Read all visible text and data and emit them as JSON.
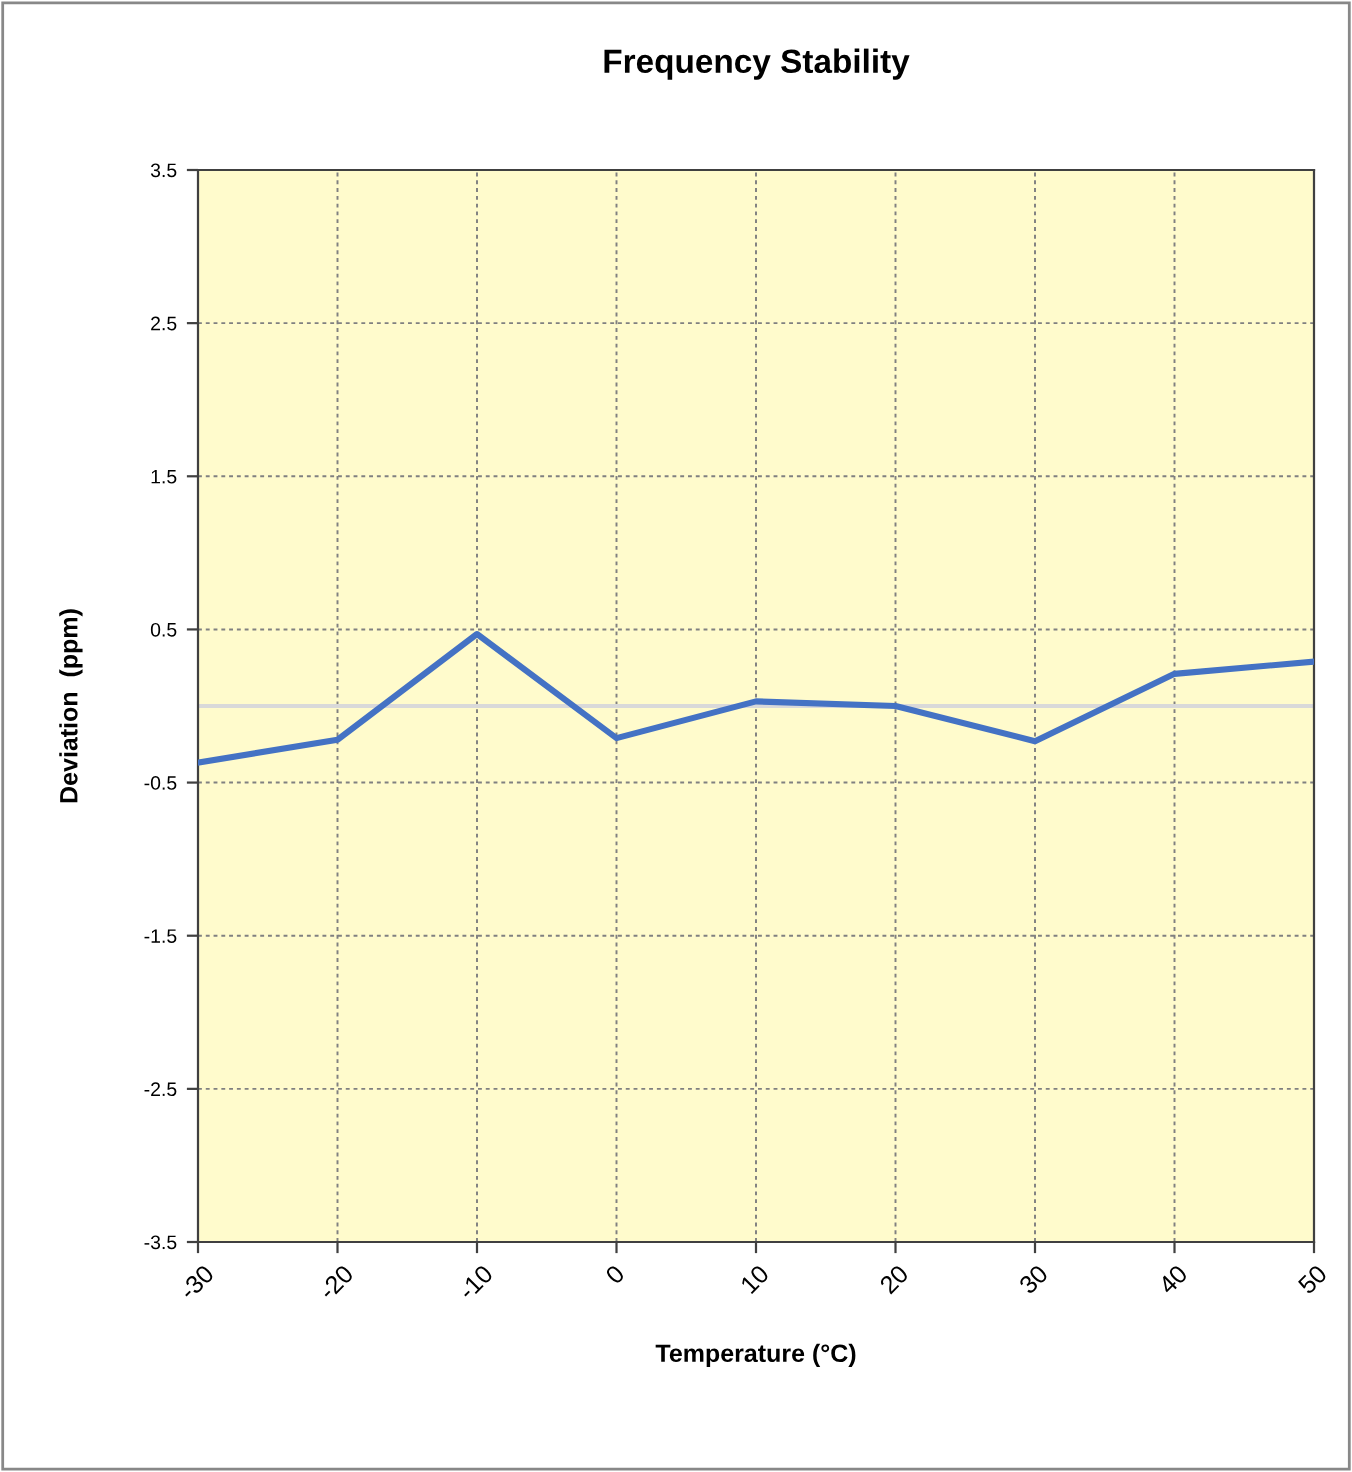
{
  "chart_data": {
    "type": "line",
    "title": "Frequency Stability",
    "xlabel": "Temperature (°C)",
    "ylabel": "Deviation  (ppm)",
    "x": [
      -30,
      -20,
      -10,
      0,
      10,
      20,
      30,
      40,
      50
    ],
    "series": [
      {
        "color": "#4472c4",
        "values": [
          -0.37,
          -0.22,
          0.47,
          -0.21,
          0.03,
          0.0,
          -0.23,
          0.21,
          0.29
        ]
      }
    ],
    "xlim": [
      -30,
      50
    ],
    "xticks": [
      -30,
      -20,
      -10,
      0,
      10,
      20,
      30,
      40,
      50
    ],
    "ylim": [
      -3.5,
      3.5
    ],
    "yticks": [
      -3.5,
      -2.5,
      -1.5,
      -0.5,
      0.5,
      1.5,
      2.5,
      3.5
    ],
    "ref_lines": [
      {
        "axis": "y",
        "value": 0,
        "color": "#d9d9d9"
      }
    ],
    "grid": true,
    "marker": "none",
    "line_style": "solid",
    "legend": false
  }
}
